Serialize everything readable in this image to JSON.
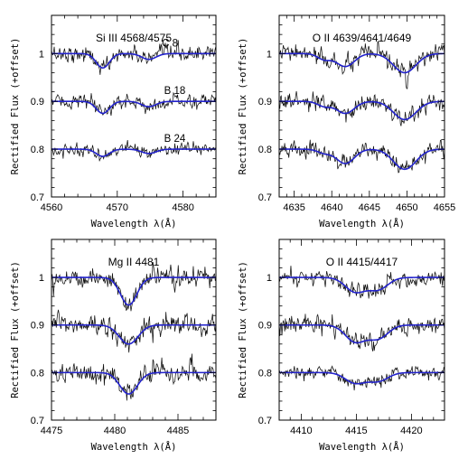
{
  "chart_data": [
    {
      "type": "line",
      "title": "Si III 4568/4575",
      "xlabel": "Wavelength λ(Å)",
      "ylabel": "Rectified Flux (+offset)",
      "xlim": [
        4560,
        4585
      ],
      "ylim": [
        0.7,
        1.08
      ],
      "xticks": [
        4560,
        4570,
        4580
      ],
      "yticks": [
        0.7,
        0.8,
        0.9,
        1
      ],
      "ytick_labels": [
        "0.7",
        "0.8",
        "0.9",
        "1"
      ],
      "grid": false,
      "series": [
        {
          "name": "C 8",
          "offset": 1.0,
          "lines": [
            {
              "center": 4567.8,
              "depth": 0.03,
              "width": 1.0
            },
            {
              "center": 4574.8,
              "depth": 0.012,
              "width": 1.1
            }
          ],
          "noise": 0.008
        },
        {
          "name": "B 18",
          "offset": 0.9,
          "lines": [
            {
              "center": 4567.8,
              "depth": 0.025,
              "width": 1.0
            },
            {
              "center": 4574.8,
              "depth": 0.011,
              "width": 1.1
            }
          ],
          "noise": 0.007
        },
        {
          "name": "B 24",
          "offset": 0.8,
          "lines": [
            {
              "center": 4567.8,
              "depth": 0.015,
              "width": 1.0
            },
            {
              "center": 4574.8,
              "depth": 0.009,
              "width": 1.1
            }
          ],
          "noise": 0.006
        }
      ]
    },
    {
      "type": "line",
      "title": "O II 4639/4641/4649",
      "xlabel": "Wavelength λ(Å)",
      "ylabel": "Rectified Flux (+offset)",
      "xlim": [
        4633,
        4655
      ],
      "ylim": [
        0.7,
        1.08
      ],
      "xticks": [
        4635,
        4640,
        4645,
        4650,
        4655
      ],
      "yticks": [
        0.7,
        0.8,
        0.9,
        1
      ],
      "ytick_labels": [
        "0.7",
        "0.8",
        "0.9",
        "1"
      ],
      "grid": false,
      "series": [
        {
          "name": "",
          "offset": 1.0,
          "lines": [
            {
              "center": 4639.0,
              "depth": 0.012,
              "width": 0.9
            },
            {
              "center": 4641.8,
              "depth": 0.027,
              "width": 1.2
            },
            {
              "center": 4649.7,
              "depth": 0.04,
              "width": 1.5
            }
          ],
          "noise": 0.009
        },
        {
          "name": "",
          "offset": 0.9,
          "lines": [
            {
              "center": 4639.0,
              "depth": 0.01,
              "width": 0.9
            },
            {
              "center": 4641.8,
              "depth": 0.025,
              "width": 1.2
            },
            {
              "center": 4649.7,
              "depth": 0.038,
              "width": 1.5
            }
          ],
          "noise": 0.008
        },
        {
          "name": "",
          "offset": 0.8,
          "lines": [
            {
              "center": 4639.0,
              "depth": 0.008,
              "width": 0.9
            },
            {
              "center": 4641.8,
              "depth": 0.03,
              "width": 1.2
            },
            {
              "center": 4649.7,
              "depth": 0.042,
              "width": 1.5
            }
          ],
          "noise": 0.008
        }
      ]
    },
    {
      "type": "line",
      "title": "Mg II 4481",
      "xlabel": "Wavelength λ(Å)",
      "ylabel": "Rectified Flux (+offset)",
      "xlim": [
        4475,
        4488
      ],
      "ylim": [
        0.7,
        1.08
      ],
      "xticks": [
        4475,
        4480,
        4485
      ],
      "yticks": [
        0.7,
        0.8,
        0.9,
        1
      ],
      "ytick_labels": [
        "0.7",
        "0.8",
        "0.9",
        "1"
      ],
      "grid": false,
      "series": [
        {
          "name": "",
          "offset": 1.0,
          "lines": [
            {
              "center": 4481.1,
              "depth": 0.058,
              "width": 0.65
            }
          ],
          "noise": 0.01
        },
        {
          "name": "",
          "offset": 0.9,
          "lines": [
            {
              "center": 4481.1,
              "depth": 0.04,
              "width": 0.75
            }
          ],
          "noise": 0.011
        },
        {
          "name": "",
          "offset": 0.8,
          "lines": [
            {
              "center": 4481.1,
              "depth": 0.045,
              "width": 0.7
            }
          ],
          "noise": 0.01
        }
      ]
    },
    {
      "type": "line",
      "title": "O II 4415/4417",
      "xlabel": "Wavelength λ(Å)",
      "ylabel": "Rectified Flux (+offset)",
      "xlim": [
        4408,
        4423
      ],
      "ylim": [
        0.7,
        1.08
      ],
      "xticks": [
        4410,
        4415,
        4420
      ],
      "yticks": [
        0.7,
        0.8,
        0.9,
        1
      ],
      "ytick_labels": [
        "0.7",
        "0.8",
        "0.9",
        "1"
      ],
      "grid": false,
      "series": [
        {
          "name": "",
          "offset": 1.0,
          "lines": [
            {
              "center": 4414.9,
              "depth": 0.03,
              "width": 0.9
            },
            {
              "center": 4416.97,
              "depth": 0.025,
              "width": 0.9
            }
          ],
          "noise": 0.008
        },
        {
          "name": "",
          "offset": 0.9,
          "lines": [
            {
              "center": 4414.9,
              "depth": 0.035,
              "width": 0.9
            },
            {
              "center": 4416.97,
              "depth": 0.028,
              "width": 0.9
            }
          ],
          "noise": 0.009
        },
        {
          "name": "",
          "offset": 0.8,
          "lines": [
            {
              "center": 4414.9,
              "depth": 0.022,
              "width": 0.9
            },
            {
              "center": 4416.97,
              "depth": 0.018,
              "width": 0.9
            }
          ],
          "noise": 0.007
        }
      ]
    }
  ],
  "colors": {
    "model": "#2222cc",
    "observed": "#111111"
  }
}
